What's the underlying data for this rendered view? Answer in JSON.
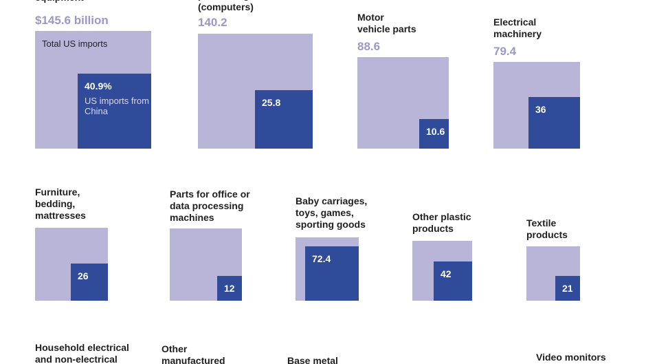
{
  "chart_data": {
    "type": "area-comparison (nested squares)",
    "unit": "billion USD",
    "legend": {
      "total_label": "Total US imports",
      "china_label": "US imports from China",
      "china_share_label": "40.9%"
    },
    "colors": {
      "total": "#b9b5d9",
      "china": "#2f4b9a",
      "total_text": "#9b97c8"
    },
    "items": [
      {
        "title": "equipment",
        "total_label": "$145.6 billion",
        "total": 145.6,
        "china_label": "",
        "china": 59.6
      },
      {
        "title": "processing machines\n(computers)",
        "total_label": "140.2",
        "total": 140.2,
        "china_label": "25.8",
        "china": 25.8
      },
      {
        "title": "Motor\nvehicle parts",
        "total_label": "88.6",
        "total": 88.6,
        "china_label": "10.6",
        "china": 10.6
      },
      {
        "title": "Electrical\nmachinery",
        "total_label": "79.4",
        "total": 79.4,
        "china_label": "36",
        "china": 36
      },
      {
        "title": "Furniture,\nbedding,\nmattresses",
        "total_label": "",
        "china_label": "26",
        "china": 26
      },
      {
        "title": "Parts for office or\ndata processing\nmachines",
        "total_label": "",
        "china_label": "12",
        "china": 12
      },
      {
        "title": "Baby carriages,\ntoys, games,\nsporting goods",
        "total_label": "",
        "china_label": "72.4",
        "china": 72.4
      },
      {
        "title": "Other plastic\nproducts",
        "total_label": "",
        "china_label": "42",
        "china": 42
      },
      {
        "title": "Textile\nproducts",
        "total_label": "",
        "china_label": "21",
        "china": 21
      },
      {
        "title": "Household electrical\nand non-electrical",
        "total_label": "",
        "china_label": ""
      },
      {
        "title": "Other\nmanufactured",
        "total_label": "",
        "china_label": ""
      },
      {
        "title": "Base metal",
        "total_label": "",
        "china_label": ""
      },
      {
        "title": "Video monitors",
        "total_label": "",
        "china_label": ""
      }
    ]
  }
}
